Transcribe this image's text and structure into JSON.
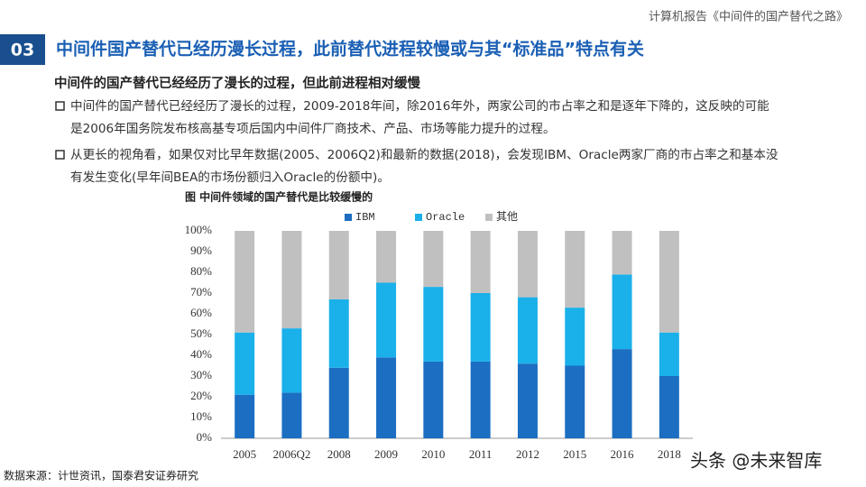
{
  "header": {
    "report": "计算机报告《中间件的国产替代之路》"
  },
  "section": {
    "number": "03",
    "title": "中间件国产替代已经历漫长过程，此前替代进程较慢或与其“标准品”特点有关"
  },
  "subtitle": "中间件的国产替代已经经历了漫长的过程，但此前进程相对缓慢",
  "bullets": [
    [
      "中间件的国产替代已经经历了漫长的过程，2009-2018年间，除2016年外，两家公司的市占率之和是逐年下降的，这反映的可能",
      "是2006年国务院发布核高基专项后国内中间件厂商技术、产品、市场等能力提升的过程。"
    ],
    [
      "从更长的视角看，如果仅对比早年数据(2005、2006Q2)和最新的数据(2018)，会发现IBM、Oracle两家厂商的市占率之和基本没",
      "有发生变化(早年间BEA的市场份额归入Oracle的份额中)。"
    ]
  ],
  "chart_data": {
    "type": "stacked_bar",
    "title": "图 中间件领域的国产替代是比较缓慢的",
    "categories": [
      "2005",
      "2006Q2",
      "2008",
      "2009",
      "2010",
      "2011",
      "2012",
      "2015",
      "2016",
      "2018"
    ],
    "series": [
      {
        "name": "IBM",
        "color": "#1b6ec2",
        "values": [
          21,
          22,
          34,
          39,
          37,
          37,
          36,
          35,
          43,
          30
        ]
      },
      {
        "name": "Oracle",
        "color": "#1ab0ea",
        "values": [
          30,
          31,
          33,
          36,
          36,
          33,
          32,
          28,
          36,
          21
        ]
      },
      {
        "name": "其他",
        "color": "#c0c0c0",
        "values": [
          49,
          47,
          33,
          25,
          27,
          30,
          32,
          37,
          21,
          49
        ]
      }
    ],
    "ylim": [
      0,
      100
    ],
    "yticks": [
      {
        "value": 0,
        "label": "0%"
      },
      {
        "value": 10,
        "label": "10%"
      },
      {
        "value": 20,
        "label": "20%"
      },
      {
        "value": 30,
        "label": "30%"
      },
      {
        "value": 40,
        "label": "40%"
      },
      {
        "value": 50,
        "label": "50%"
      },
      {
        "value": 60,
        "label": "60%"
      },
      {
        "value": 70,
        "label": "70%"
      },
      {
        "value": 80,
        "label": "80%"
      },
      {
        "value": 90,
        "label": "90%"
      },
      {
        "value": 100,
        "label": "100%"
      }
    ],
    "grid": false,
    "legend": "top"
  },
  "source": "数据来源：计世资讯，国泰君安证券研究",
  "watermark": "头条 @未来智库"
}
